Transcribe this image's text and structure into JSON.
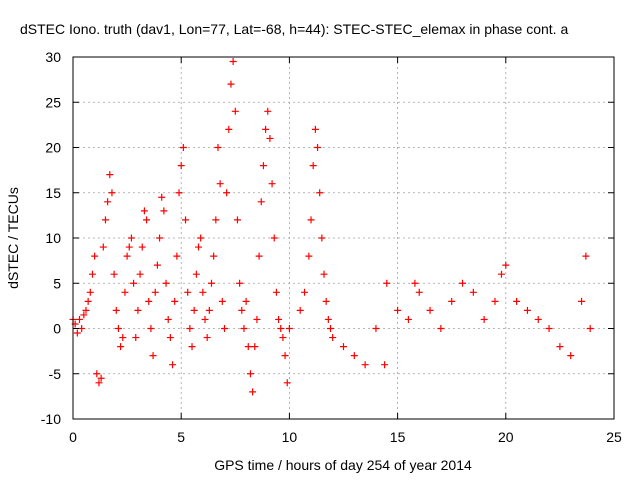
{
  "chart_data": {
    "type": "scatter",
    "title": "dSTEC Iono. truth (dav1, Lon=77, Lat=-68, h=44): STEC-STEC_elemax in phase cont. a",
    "xlabel": "GPS time / hours of day 254 of year 2014",
    "ylabel": "dSTEC  / TECUs",
    "xlim": [
      0,
      25
    ],
    "ylim": [
      -10,
      30
    ],
    "xticks": [
      0,
      5,
      10,
      15,
      20,
      25
    ],
    "yticks": [
      -10,
      -5,
      0,
      5,
      10,
      15,
      20,
      25,
      30
    ],
    "grid": true,
    "marker": "+",
    "colors": {
      "series": "#ff0000",
      "grid": "#a0a0a0",
      "axes": "#000000"
    },
    "series": [
      {
        "x": [
          0.0,
          0.1,
          0.2,
          0.3,
          0.4,
          0.5,
          0.6,
          0.7,
          0.8,
          0.9,
          1.0,
          1.1,
          1.2,
          1.3,
          1.4,
          1.5,
          1.6,
          1.7,
          1.8,
          1.9,
          2.0,
          2.1,
          2.2,
          2.3,
          2.4,
          2.5,
          2.6,
          2.7,
          2.8,
          2.9,
          3.0,
          3.1,
          3.2,
          3.3,
          3.4,
          3.5,
          3.6,
          3.7,
          3.8,
          3.9,
          4.0,
          4.1,
          4.2,
          4.3,
          4.4,
          4.5,
          4.6,
          4.7,
          4.8,
          4.9,
          5.0,
          5.1,
          5.2,
          5.3,
          5.4,
          5.5,
          5.6,
          5.7,
          5.8,
          5.9,
          6.0,
          6.1,
          6.2,
          6.3,
          6.4,
          6.5,
          6.6,
          6.7,
          6.8,
          6.9,
          7.0,
          7.1,
          7.2,
          7.3,
          7.4,
          7.5,
          7.6,
          7.7,
          7.8,
          7.9,
          8.0,
          8.1,
          8.2,
          8.3,
          8.4,
          8.5,
          8.6,
          8.7,
          8.8,
          8.9,
          9.0,
          9.1,
          9.2,
          9.3,
          9.4,
          9.5,
          9.6,
          9.7,
          9.8,
          9.9,
          10.0,
          10.5,
          10.7,
          10.9,
          11.0,
          11.1,
          11.2,
          11.3,
          11.4,
          11.5,
          11.6,
          11.7,
          11.8,
          11.9,
          12.0,
          12.5,
          13.0,
          13.5,
          14.0,
          14.4,
          14.5,
          15.0,
          15.5,
          15.8,
          16.0,
          16.5,
          17.0,
          17.5,
          18.0,
          18.5,
          19.0,
          19.5,
          19.8,
          20.0,
          20.5,
          21.0,
          21.5,
          22.0,
          22.5,
          23.0,
          23.5,
          23.7,
          23.9
        ],
        "y": [
          1.0,
          0.5,
          -0.5,
          1.0,
          0.0,
          1.5,
          2.0,
          3.0,
          4.0,
          6.0,
          8.0,
          -5.0,
          -6.0,
          -5.5,
          9.0,
          12.0,
          14.0,
          17.0,
          15.0,
          6.0,
          2.0,
          0.0,
          -2.0,
          -1.0,
          4.0,
          8.0,
          9.0,
          10.0,
          5.0,
          -1.0,
          2.0,
          6.0,
          9.0,
          13.0,
          12.0,
          3.0,
          0.0,
          -3.0,
          4.0,
          7.0,
          10.0,
          14.5,
          13.0,
          5.0,
          1.0,
          -1.0,
          -4.0,
          3.0,
          8.0,
          15.0,
          18.0,
          20.0,
          12.0,
          4.0,
          0.0,
          -2.0,
          2.0,
          6.0,
          9.0,
          10.0,
          4.0,
          1.0,
          -1.0,
          2.0,
          5.0,
          8.0,
          12.0,
          20.0,
          16.0,
          3.0,
          0.0,
          15.0,
          22.0,
          27.0,
          29.5,
          24.0,
          12.0,
          5.0,
          2.0,
          0.0,
          3.0,
          -2.0,
          -5.0,
          -7.0,
          -2.0,
          1.0,
          8.0,
          14.0,
          18.0,
          22.0,
          24.0,
          21.0,
          16.0,
          10.0,
          4.0,
          1.0,
          0.0,
          -1.0,
          -3.0,
          -6.0,
          0.0,
          2.0,
          4.0,
          8.0,
          12.0,
          18.0,
          22.0,
          20.0,
          15.0,
          10.0,
          6.0,
          3.0,
          1.0,
          0.0,
          -1.0,
          -2.0,
          -3.0,
          -4.0,
          0.0,
          -4.0,
          5.0,
          2.0,
          1.0,
          5.0,
          4.0,
          2.0,
          0.0,
          3.0,
          5.0,
          4.0,
          1.0,
          3.0,
          6.0,
          7.0,
          3.0,
          2.0,
          1.0,
          0.0,
          -2.0,
          -3.0,
          3.0,
          8.0,
          0.0
        ]
      }
    ]
  }
}
